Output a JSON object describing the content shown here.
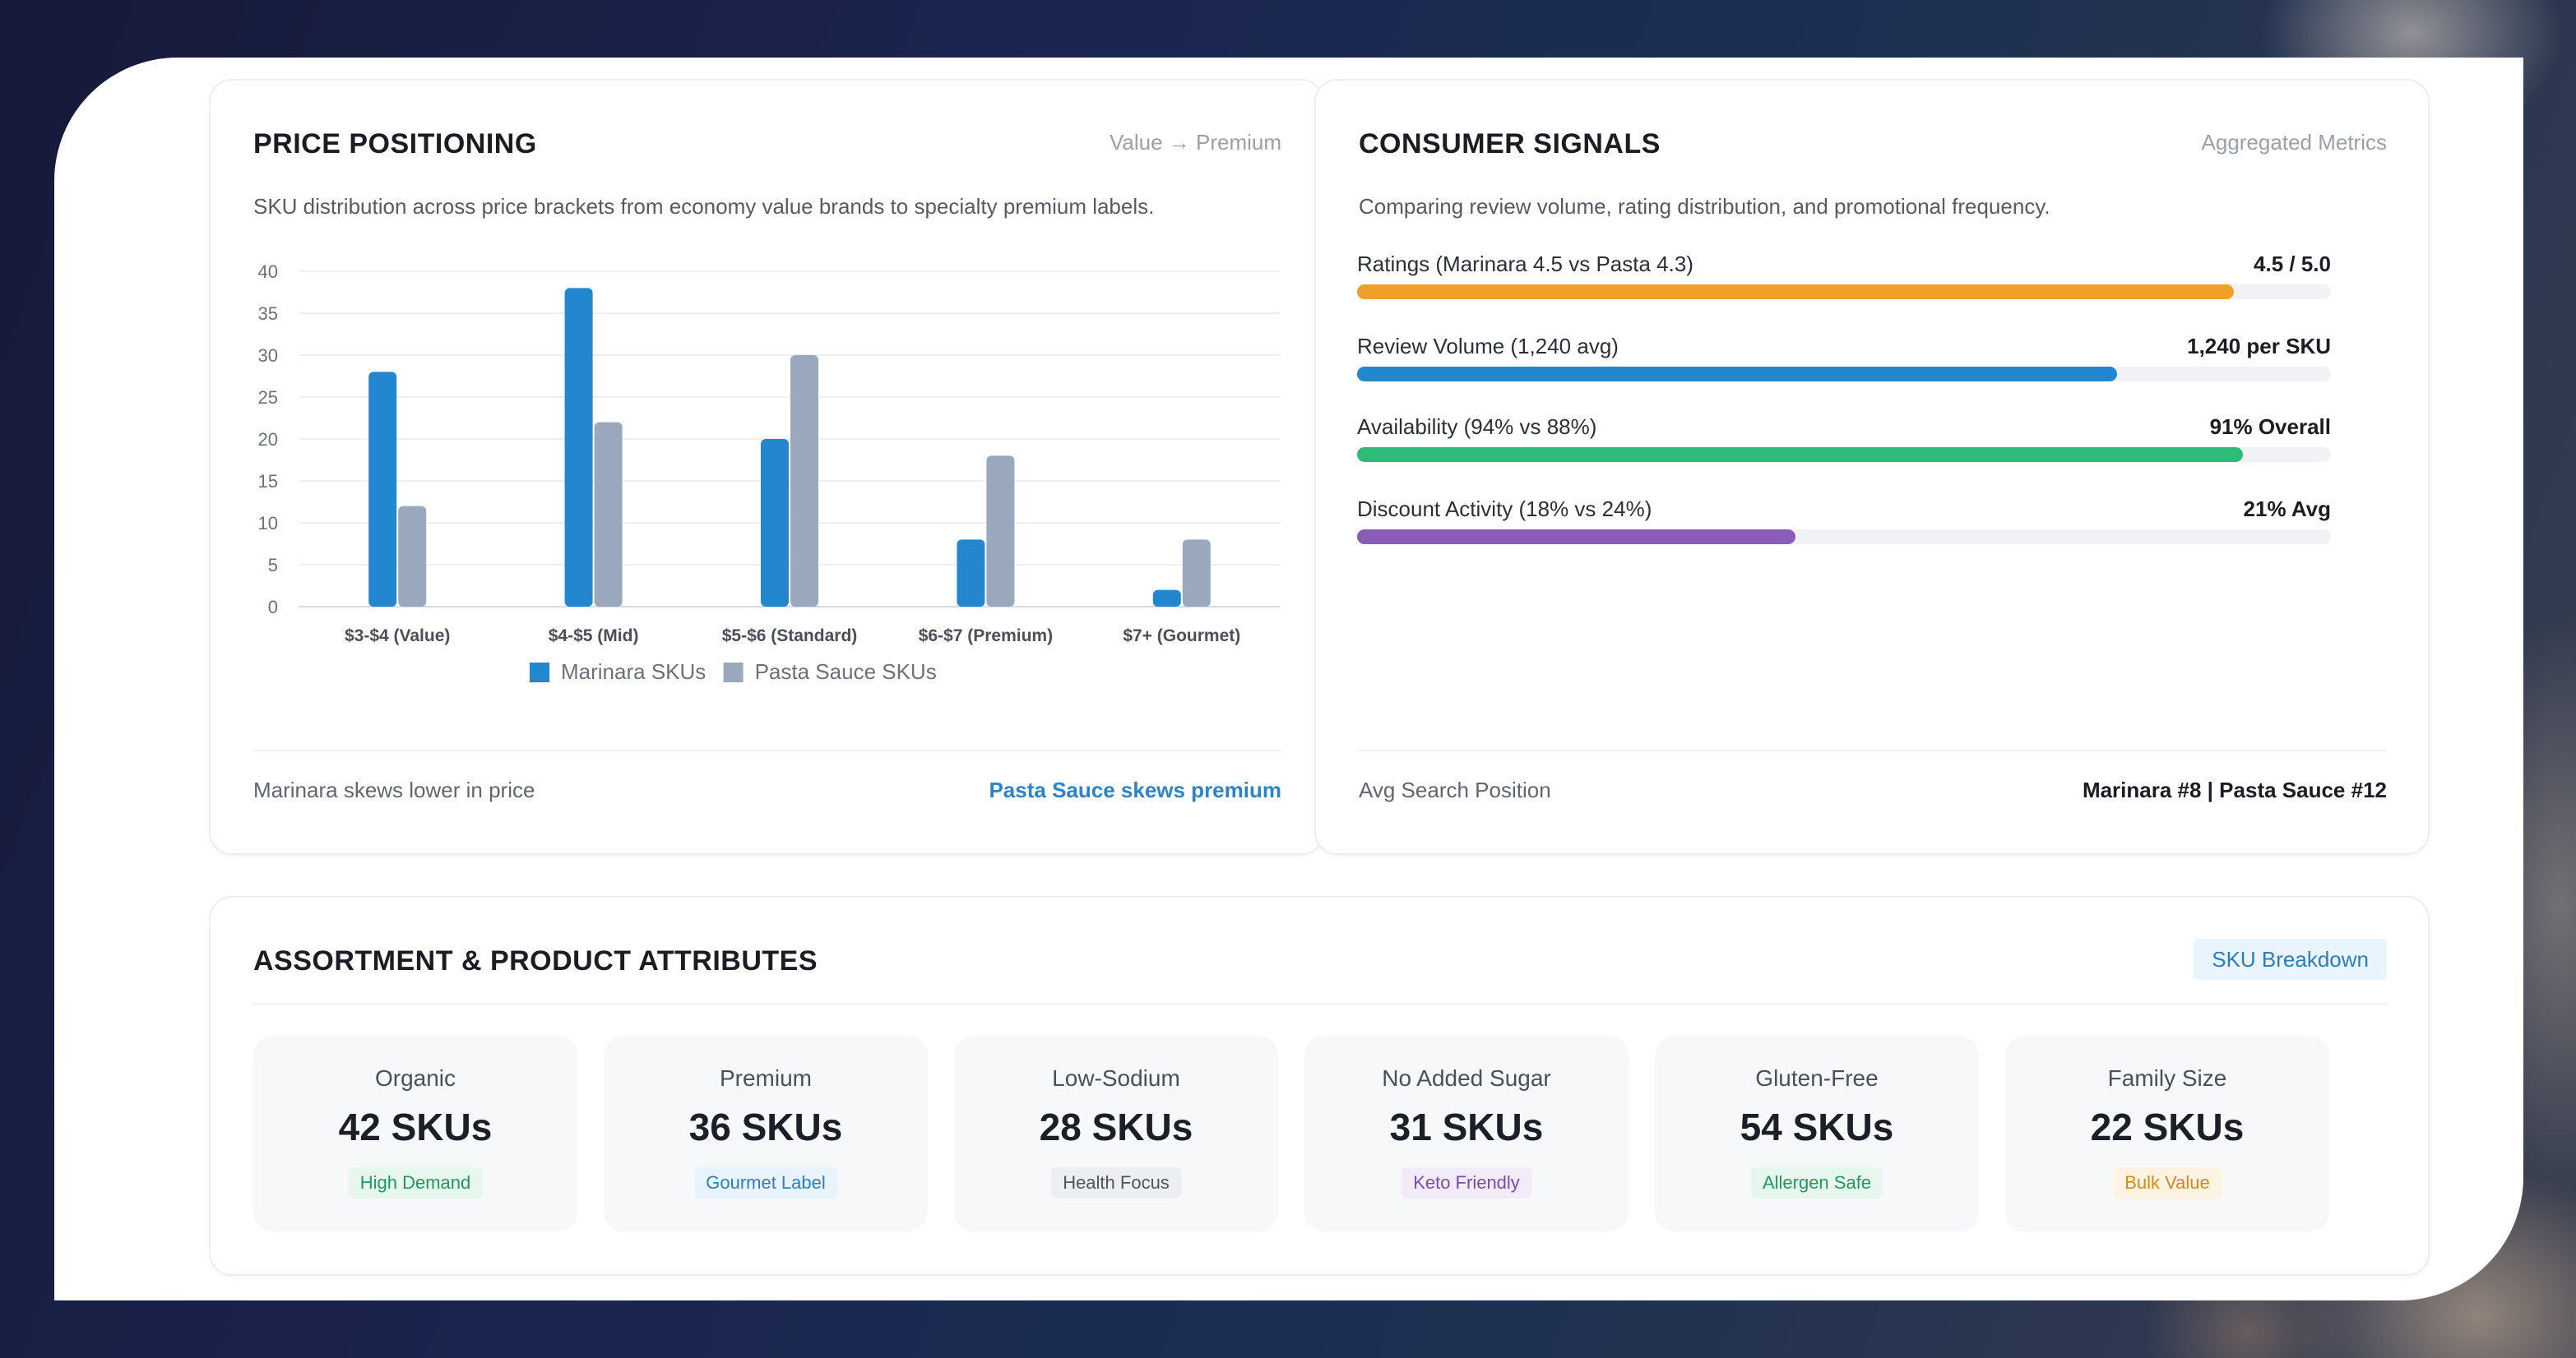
{
  "price_card": {
    "title": "PRICE POSITIONING",
    "tag": "Value → Premium",
    "subtitle": "SKU distribution across price brackets from economy value brands to specialty premium labels.",
    "footer_left": "Marinara skews lower in price",
    "footer_right": "Pasta Sauce skews premium"
  },
  "chart_data": {
    "type": "bar",
    "categories": [
      "$3-$4 (Value)",
      "$4-$5 (Mid)",
      "$5-$6 (Standard)",
      "$6-$7 (Premium)",
      "$7+ (Gourmet)"
    ],
    "series": [
      {
        "name": "Marinara SKUs",
        "values": [
          28,
          38,
          20,
          8,
          2
        ],
        "color": "#2387cf"
      },
      {
        "name": "Pasta Sauce SKUs",
        "values": [
          12,
          22,
          30,
          18,
          8
        ],
        "color": "#9aa8bd"
      }
    ],
    "yticks": [
      0,
      5,
      10,
      15,
      20,
      25,
      30,
      35,
      40
    ],
    "ylim": [
      0,
      40
    ],
    "grid": true,
    "legend": "bottom-center"
  },
  "signals_card": {
    "title": "CONSUMER SIGNALS",
    "tag": "Aggregated Metrics",
    "subtitle": "Comparing review volume, rating distribution, and promotional frequency.",
    "metrics": [
      {
        "label": "Ratings (Marinara 4.5 vs Pasta 4.3)",
        "value": "4.5 / 5.0",
        "fill": 0.9,
        "color": "#f0a02a"
      },
      {
        "label": "Review Volume (1,240 avg)",
        "value": "1,240 per SKU",
        "fill": 0.78,
        "color": "#2387cf"
      },
      {
        "label": "Availability (94% vs 88%)",
        "value": "91% Overall",
        "fill": 0.91,
        "color": "#2dbb78"
      },
      {
        "label": "Discount Activity (18% vs 24%)",
        "value": "21% Avg",
        "fill": 0.45,
        "color": "#8a5cb8"
      }
    ],
    "footer_left": "Avg Search Position",
    "footer_right": "Marinara #8 | Pasta Sauce #12"
  },
  "assortment_card": {
    "title": "ASSORTMENT & PRODUCT ATTRIBUTES",
    "badge": "SKU Breakdown",
    "tiles": [
      {
        "name": "Organic",
        "count": "42 SKUs",
        "pill": "High Demand",
        "pill_color": "#1f9a5a",
        "pill_bg": "#e7f6ee"
      },
      {
        "name": "Premium",
        "count": "36 SKUs",
        "pill": "Gourmet Label",
        "pill_color": "#2b7fc0",
        "pill_bg": "#e9f3fb"
      },
      {
        "name": "Low-Sodium",
        "count": "28 SKUs",
        "pill": "Health Focus",
        "pill_color": "#4e5560",
        "pill_bg": "#eceef1"
      },
      {
        "name": "No Added Sugar",
        "count": "31 SKUs",
        "pill": "Keto Friendly",
        "pill_color": "#7a4bb0",
        "pill_bg": "#f2ecf9"
      },
      {
        "name": "Gluten-Free",
        "count": "54 SKUs",
        "pill": "Allergen Safe",
        "pill_color": "#1f9a5a",
        "pill_bg": "#e7f6ee"
      },
      {
        "name": "Family Size",
        "count": "22 SKUs",
        "pill": "Bulk Value",
        "pill_color": "#d88a12",
        "pill_bg": "#fdf3e3"
      }
    ]
  }
}
